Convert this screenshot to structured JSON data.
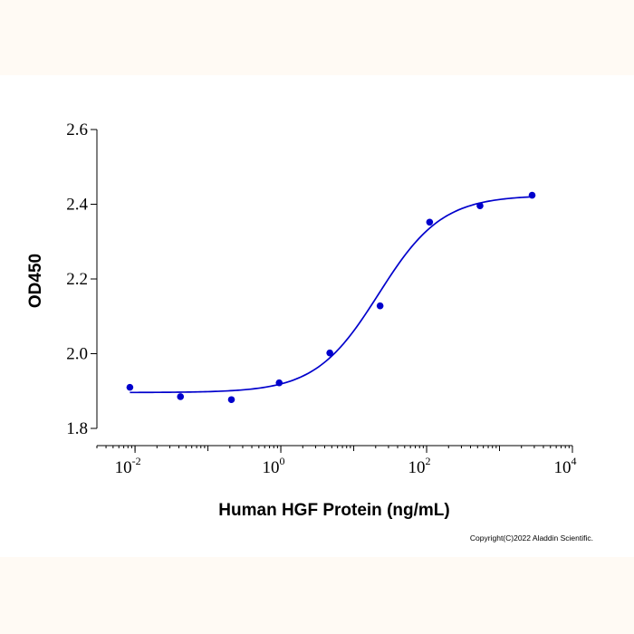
{
  "colors": {
    "page_background": "#fffaf4",
    "plot_background": "#ffffff",
    "series": "#0000cc",
    "axis": "#000000"
  },
  "copyright": "Copyright(C)2022 Aladdin Scientific.",
  "chart_data": {
    "type": "scatter",
    "title": "",
    "xlabel": "Human HGF Protein (ng/mL)",
    "ylabel": "OD450",
    "x_scale": "log",
    "xlim": [
      0.003,
      10000
    ],
    "ylim": [
      1.8,
      2.6
    ],
    "x_ticks": [
      {
        "value": 0.01,
        "base": "10",
        "exp": "-2"
      },
      {
        "value": 1,
        "base": "10",
        "exp": "0"
      },
      {
        "value": 100,
        "base": "10",
        "exp": "2"
      },
      {
        "value": 10000,
        "base": "10",
        "exp": "4"
      }
    ],
    "y_ticks": [
      "1.8",
      "2.0",
      "2.2",
      "2.4",
      "2.6"
    ],
    "grid": false,
    "legend": "none",
    "series": [
      {
        "values": [
          {
            "x": 0.0085,
            "y": 1.91
          },
          {
            "x": 0.042,
            "y": 1.885
          },
          {
            "x": 0.21,
            "y": 1.877
          },
          {
            "x": 0.95,
            "y": 1.922
          },
          {
            "x": 4.7,
            "y": 2.002
          },
          {
            "x": 23,
            "y": 2.128
          },
          {
            "x": 110,
            "y": 2.352
          },
          {
            "x": 540,
            "y": 2.396
          },
          {
            "x": 2800,
            "y": 2.424
          }
        ],
        "fit": {
          "model": "4PL",
          "bottom": 1.896,
          "top": 2.424,
          "ec50": 22,
          "hill": 1.0,
          "x_range": [
            0.0085,
            2800
          ]
        }
      }
    ]
  }
}
